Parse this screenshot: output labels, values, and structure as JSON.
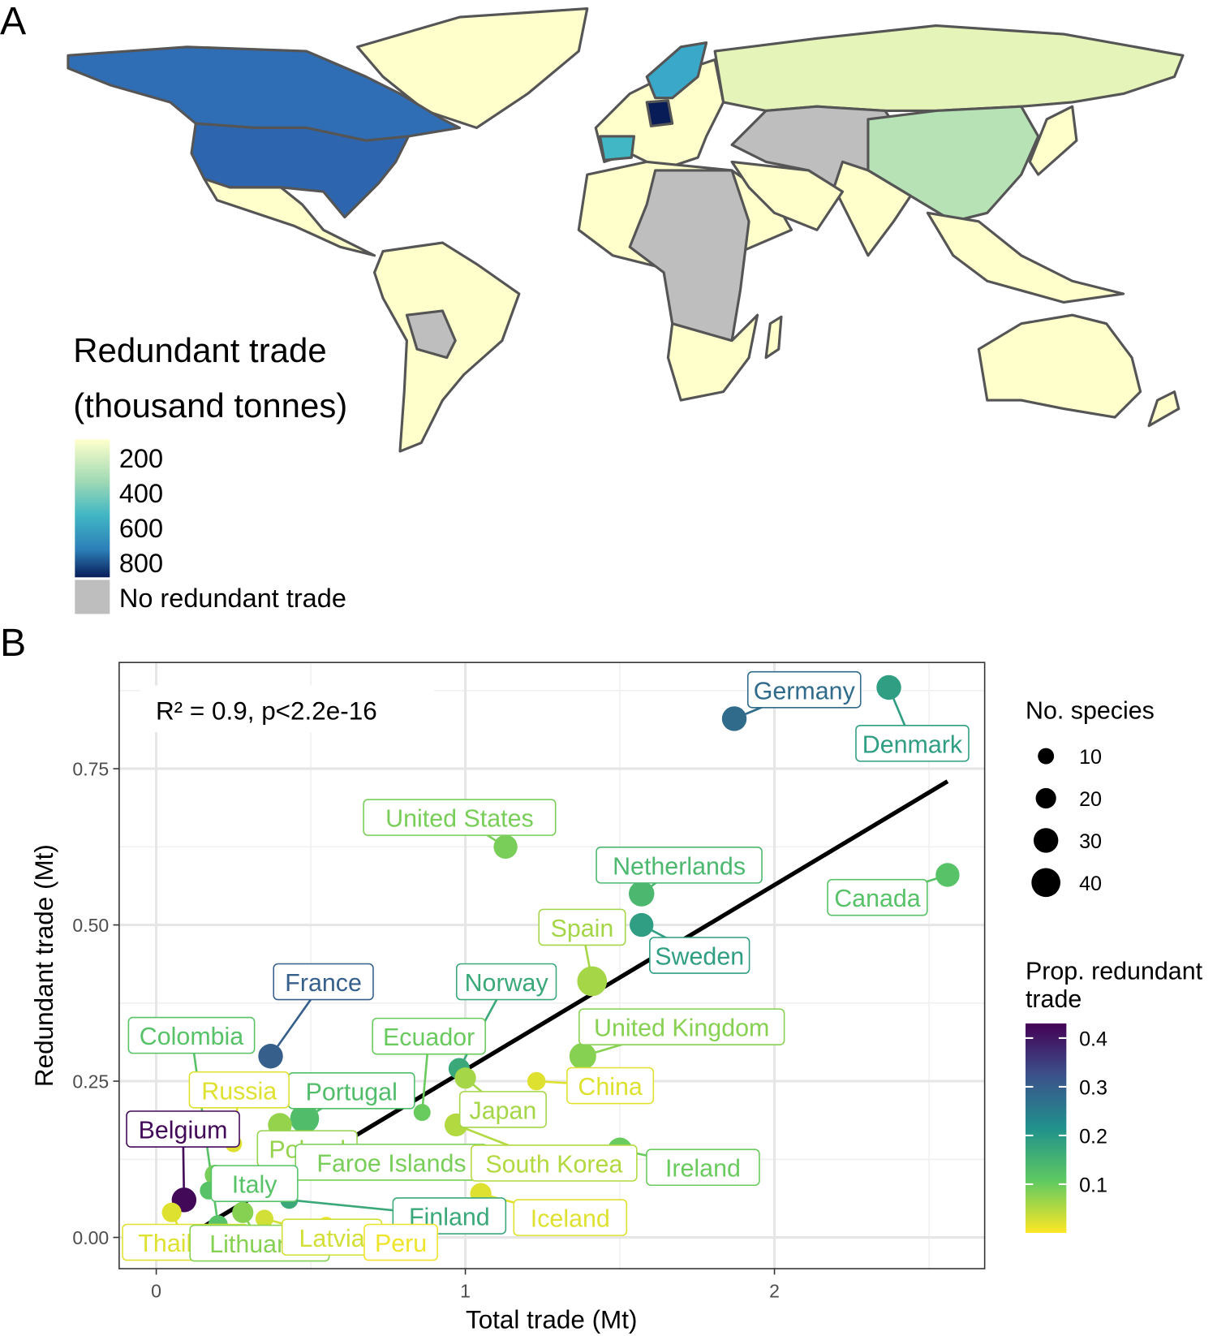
{
  "panel_labels": {
    "a": "A",
    "b": "B"
  },
  "map": {
    "legend_title_1": "Redundant trade",
    "legend_title_2": "(thousand tonnes)",
    "legend_ticks": [
      "200",
      "400",
      "600",
      "800"
    ],
    "legend_na": "No redundant trade",
    "colors": {
      "low": "#ffffcc",
      "mid": "#41b6c4",
      "high": "#081d58",
      "na": "#bebebe",
      "border": "#555555"
    }
  },
  "chart_data": {
    "type": "scatter",
    "title": "",
    "xlabel": "Total trade (Mt)",
    "ylabel": "Redundant trade (Mt)",
    "xlim": [
      -0.12,
      2.68
    ],
    "ylim": [
      -0.05,
      0.92
    ],
    "xticks": [
      {
        "v": 0,
        "label": "0"
      },
      {
        "v": 1,
        "label": "1"
      },
      {
        "v": 2,
        "label": "2"
      }
    ],
    "yticks": [
      {
        "v": 0,
        "label": "0.00"
      },
      {
        "v": 0.25,
        "label": "0.25"
      },
      {
        "v": 0.5,
        "label": "0.50"
      },
      {
        "v": 0.75,
        "label": "0.75"
      }
    ],
    "grid": true,
    "annotation": "R² = 0.9, p<2.2e-16",
    "regression": {
      "slope": 0.296,
      "intercept": -0.028,
      "x_range": [
        0.06,
        2.56
      ]
    },
    "points": [
      {
        "name": "Germany",
        "x": 1.87,
        "y": 0.83,
        "species": 30,
        "prop": 0.28
      },
      {
        "name": "Denmark",
        "x": 2.37,
        "y": 0.88,
        "species": 30,
        "prop": 0.19
      },
      {
        "name": "United States",
        "x": 1.13,
        "y": 0.625,
        "species": 28,
        "prop": 0.09
      },
      {
        "name": "Netherlands",
        "x": 1.57,
        "y": 0.55,
        "species": 32,
        "prop": 0.14
      },
      {
        "name": "Sweden",
        "x": 1.57,
        "y": 0.5,
        "species": 28,
        "prop": 0.19
      },
      {
        "name": "Canada",
        "x": 2.56,
        "y": 0.58,
        "species": 28,
        "prop": 0.12
      },
      {
        "name": "Spain",
        "x": 1.41,
        "y": 0.41,
        "species": 42,
        "prop": 0.06
      },
      {
        "name": "United Kingdom",
        "x": 1.38,
        "y": 0.29,
        "species": 35,
        "prop": 0.08
      },
      {
        "name": "France",
        "x": 0.37,
        "y": 0.29,
        "species": 30,
        "prop": 0.3
      },
      {
        "name": "Norway",
        "x": 0.98,
        "y": 0.27,
        "species": 22,
        "prop": 0.17
      },
      {
        "name": "Ecuador",
        "x": 0.86,
        "y": 0.2,
        "species": 12,
        "prop": 0.1
      },
      {
        "name": "China",
        "x": 1.23,
        "y": 0.25,
        "species": 15,
        "prop": 0.02
      },
      {
        "name": "Japan",
        "x": 1.0,
        "y": 0.255,
        "species": 22,
        "prop": 0.06
      },
      {
        "name": "Portugal",
        "x": 0.48,
        "y": 0.19,
        "species": 40,
        "prop": 0.13
      },
      {
        "name": "Colombia",
        "x": 0.2,
        "y": 0.02,
        "species": 18,
        "prop": 0.12
      },
      {
        "name": "Russia",
        "x": 0.25,
        "y": 0.15,
        "species": 12,
        "prop": 0.02
      },
      {
        "name": "Belgium",
        "x": 0.09,
        "y": 0.06,
        "species": 30,
        "prop": 0.42
      },
      {
        "name": "Poland",
        "x": 0.4,
        "y": 0.18,
        "species": 28,
        "prop": 0.07
      },
      {
        "name": "Faroe Islands",
        "x": 0.19,
        "y": 0.1,
        "species": 20,
        "prop": 0.09
      },
      {
        "name": "South Korea",
        "x": 0.97,
        "y": 0.18,
        "species": 26,
        "prop": 0.05
      },
      {
        "name": "Ireland",
        "x": 1.5,
        "y": 0.14,
        "species": 30,
        "prop": 0.1
      },
      {
        "name": "Italy",
        "x": 0.17,
        "y": 0.075,
        "species": 14,
        "prop": 0.12
      },
      {
        "name": "Finland",
        "x": 0.43,
        "y": 0.06,
        "species": 14,
        "prop": 0.17
      },
      {
        "name": "Iceland",
        "x": 1.05,
        "y": 0.07,
        "species": 22,
        "prop": 0.02
      },
      {
        "name": "Thailand",
        "x": 0.05,
        "y": 0.04,
        "species": 18,
        "prop": 0.02
      },
      {
        "name": "Lithuania",
        "x": 0.28,
        "y": 0.04,
        "species": 22,
        "prop": 0.08
      },
      {
        "name": "Latvia",
        "x": 0.35,
        "y": 0.03,
        "species": 14,
        "prop": 0.03
      },
      {
        "name": "Peru",
        "x": 0.55,
        "y": 0.02,
        "species": 10,
        "prop": 0.01
      }
    ],
    "legend_size": {
      "title": "No. species",
      "values": [
        10,
        20,
        30,
        40
      ],
      "labels": [
        "10",
        "20",
        "30",
        "40"
      ]
    },
    "legend_color": {
      "title_1": "Prop. redundant",
      "title_2": "trade",
      "ticks": [
        {
          "v": 0.1,
          "label": "0.1"
        },
        {
          "v": 0.2,
          "label": "0.2"
        },
        {
          "v": 0.3,
          "label": "0.3"
        },
        {
          "v": 0.4,
          "label": "0.4"
        }
      ],
      "range": [
        0,
        0.43
      ]
    }
  }
}
